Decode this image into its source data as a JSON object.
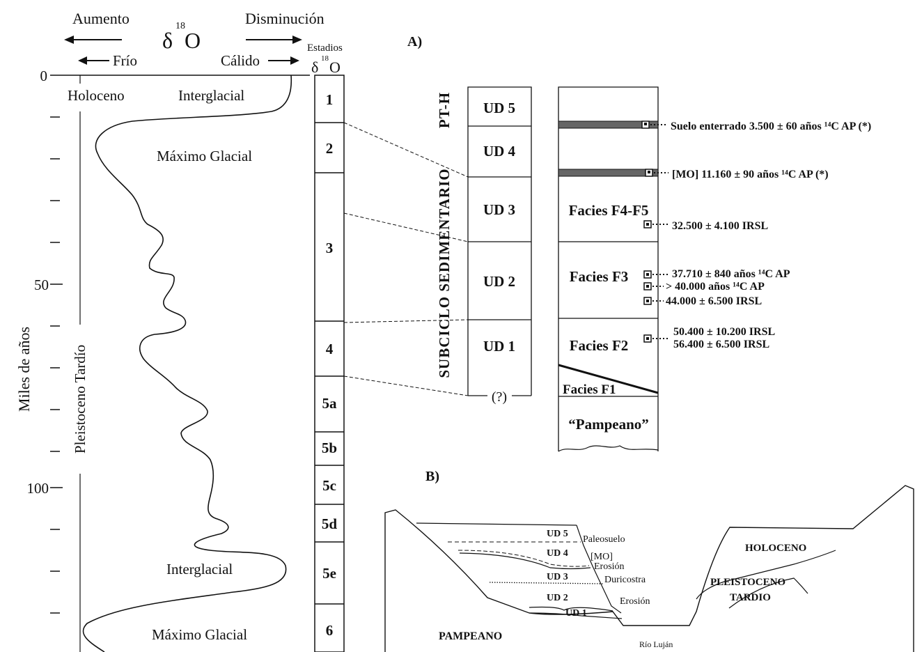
{
  "header": {
    "aumento": "Aumento",
    "disminucion": "Disminución",
    "delta": "δ",
    "sup18": "18",
    "oxygen": "O",
    "frio": "Frío",
    "calido": "Cálido",
    "estadios": "Estadios",
    "panel_a": "A)",
    "panel_b": "B)"
  },
  "axis": {
    "label": "Miles de años",
    "tick_0": "0",
    "tick_50": "50",
    "tick_100": "100"
  },
  "curve": {
    "holoceno": "Holoceno",
    "pleistoceno": "Pleistoceno Tardío",
    "interglacial_top": "Interglacial",
    "maximo_glacial_top": "Máximo Glacial",
    "interglacial_bottom": "Interglacial",
    "maximo_glacial_bottom": "Máximo Glacial"
  },
  "stages": [
    "1",
    "2",
    "3",
    "4",
    "5a",
    "5b",
    "5c",
    "5d",
    "5e",
    "6"
  ],
  "column": {
    "group_label_a": "SUBCICLO  SEDIMENTARIO",
    "group_label_b": "PT-H",
    "units": [
      "UD 5",
      "UD 4",
      "UD 3",
      "UD 2",
      "UD 1"
    ],
    "base": "(?)"
  },
  "facies": {
    "f45": "Facies F4-F5",
    "f3": "Facies F3",
    "f2": "Facies F2",
    "f1": "Facies F1",
    "pampeano": "“Pampeano”"
  },
  "dates": {
    "d1": "Suelo enterrado 3.500 ± 60 años ¹⁴C AP (*)",
    "d2": "[MO] 11.160 ± 90 años ¹⁴C AP (*)",
    "d3": "32.500 ± 4.100 IRSL",
    "d4": "37.710 ± 840 años ¹⁴C AP",
    "d5": "> 40.000 años ¹⁴C AP",
    "d6": "44.000 ± 6.500 IRSL",
    "d7": "50.400 ± 10.200 IRSL",
    "d8": "56.400 ± 6.500 IRSL"
  },
  "section": {
    "ud5": "UD 5",
    "ud4": "UD 4",
    "ud3": "UD 3",
    "ud2": "UD 2",
    "ud1": "UD 1",
    "paleosuelo": "Paleosuelo",
    "mo": "[MO]",
    "erosion1": "Erosión",
    "duricostra": "Duricostra",
    "erosion2": "Erosión",
    "holoceno": "HOLOCENO",
    "pleistoceno": "PLEISTOCENO",
    "tardio": "TARDIO",
    "pampeano": "PAMPEANO",
    "rio": "Río Luján"
  }
}
